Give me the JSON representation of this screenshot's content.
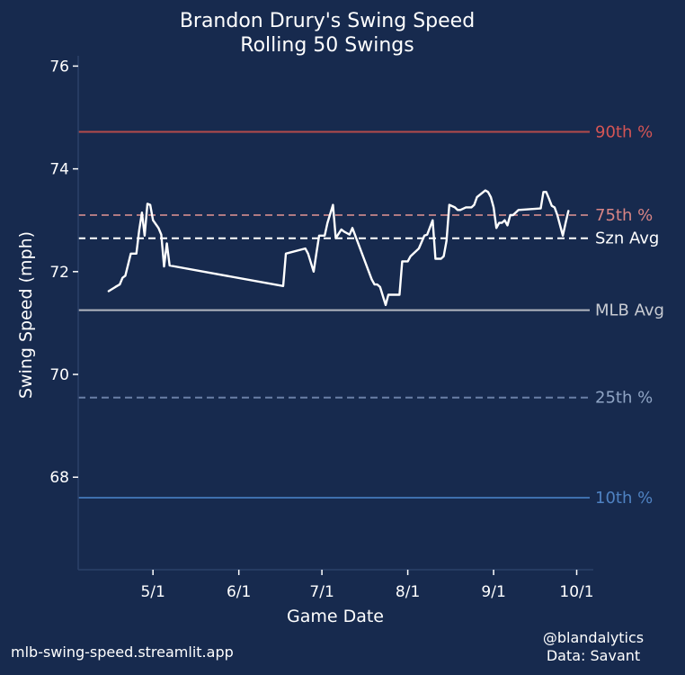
{
  "footer": {
    "left": "mlb-swing-speed.streamlit.app",
    "right_line1": "@blandalytics",
    "right_line2": "Data: Savant"
  },
  "chart_data": {
    "type": "line",
    "title": "Brandon Drury's Swing Speed",
    "subtitle": "Rolling 50 Swings",
    "xlabel": "Game Date",
    "ylabel": "Swing Speed (mph)",
    "xlim": [
      "2024-04-04",
      "2024-10-07"
    ],
    "ylim": [
      66.2,
      76.2
    ],
    "x_ticks": [
      "2024-05-01",
      "2024-06-01",
      "2024-07-01",
      "2024-08-01",
      "2024-09-01",
      "2024-10-01"
    ],
    "x_tick_labels": [
      "5/1",
      "6/1",
      "7/1",
      "8/1",
      "9/1",
      "10/1"
    ],
    "y_ticks": [
      68,
      70,
      72,
      74,
      76
    ],
    "grid": false,
    "series": [
      {
        "color": "#ffffff",
        "x": [
          "2024-04-15",
          "2024-04-18",
          "2024-04-19",
          "2024-04-20",
          "2024-04-21",
          "2024-04-23",
          "2024-04-24",
          "2024-04-25",
          "2024-04-26",
          "2024-04-27",
          "2024-04-28",
          "2024-04-29",
          "2024-04-30",
          "2024-05-01",
          "2024-05-03",
          "2024-05-04",
          "2024-05-05",
          "2024-05-06",
          "2024-05-07",
          "2024-06-17",
          "2024-06-18",
          "2024-06-25",
          "2024-06-26",
          "2024-06-28",
          "2024-06-29",
          "2024-06-30",
          "2024-07-02",
          "2024-07-03",
          "2024-07-05",
          "2024-07-06",
          "2024-07-08",
          "2024-07-09",
          "2024-07-10",
          "2024-07-11",
          "2024-07-12",
          "2024-07-19",
          "2024-07-20",
          "2024-07-21",
          "2024-07-22",
          "2024-07-24",
          "2024-07-25",
          "2024-07-26",
          "2024-07-27",
          "2024-07-29",
          "2024-07-30",
          "2024-08-01",
          "2024-08-02",
          "2024-08-05",
          "2024-08-07",
          "2024-08-08",
          "2024-08-10",
          "2024-08-11",
          "2024-08-12",
          "2024-08-13",
          "2024-08-14",
          "2024-08-15",
          "2024-08-16",
          "2024-08-18",
          "2024-08-19",
          "2024-08-20",
          "2024-08-22",
          "2024-08-24",
          "2024-08-25",
          "2024-08-26",
          "2024-08-29",
          "2024-08-30",
          "2024-08-31",
          "2024-09-01",
          "2024-09-02",
          "2024-09-03",
          "2024-09-04",
          "2024-09-05",
          "2024-09-06",
          "2024-09-07",
          "2024-09-08",
          "2024-09-10",
          "2024-09-18",
          "2024-09-19",
          "2024-09-20",
          "2024-09-21",
          "2024-09-22",
          "2024-09-23",
          "2024-09-24",
          "2024-09-26",
          "2024-09-27",
          "2024-09-28"
        ],
        "values": [
          71.62,
          71.72,
          71.75,
          71.88,
          71.92,
          72.35,
          72.35,
          72.35,
          72.8,
          73.15,
          72.7,
          73.32,
          73.3,
          73.0,
          72.85,
          72.72,
          72.1,
          72.55,
          72.12,
          71.72,
          72.35,
          72.45,
          72.35,
          72.0,
          72.35,
          72.7,
          72.7,
          72.95,
          73.3,
          72.65,
          72.82,
          72.78,
          72.75,
          72.72,
          72.85,
          71.85,
          71.75,
          71.75,
          71.7,
          71.35,
          71.55,
          71.55,
          71.55,
          71.55,
          72.2,
          72.2,
          72.3,
          72.45,
          72.7,
          72.72,
          73.0,
          72.25,
          72.25,
          72.25,
          72.3,
          72.6,
          73.3,
          73.25,
          73.2,
          73.2,
          73.25,
          73.25,
          73.3,
          73.45,
          73.58,
          73.55,
          73.45,
          73.25,
          72.85,
          72.95,
          72.95,
          73.0,
          72.9,
          73.1,
          73.1,
          73.2,
          73.23,
          73.55,
          73.55,
          73.42,
          73.28,
          73.25,
          73.1,
          72.7,
          72.95,
          73.18
        ]
      }
    ],
    "reference_lines": [
      {
        "name": "90th %",
        "value": 74.72,
        "color": "#b44b4b",
        "label_color": "#d45555",
        "style": "solid"
      },
      {
        "name": "75th %",
        "value": 73.1,
        "color": "#b07a82",
        "label_color": "#d98585",
        "style": "dashed"
      },
      {
        "name": "Szn Avg",
        "value": 72.65,
        "color": "#ffffff",
        "label_color": "#ffffff",
        "style": "dashed"
      },
      {
        "name": "MLB Avg",
        "value": 71.25,
        "color": "#b3b7c0",
        "label_color": "#c8cbd2",
        "style": "solid"
      },
      {
        "name": "25th %",
        "value": 69.55,
        "color": "#6a7fa6",
        "label_color": "#8fa4c4",
        "style": "dashed"
      },
      {
        "name": "10th %",
        "value": 67.6,
        "color": "#3e6fae",
        "label_color": "#4f82c2",
        "style": "solid"
      }
    ]
  }
}
